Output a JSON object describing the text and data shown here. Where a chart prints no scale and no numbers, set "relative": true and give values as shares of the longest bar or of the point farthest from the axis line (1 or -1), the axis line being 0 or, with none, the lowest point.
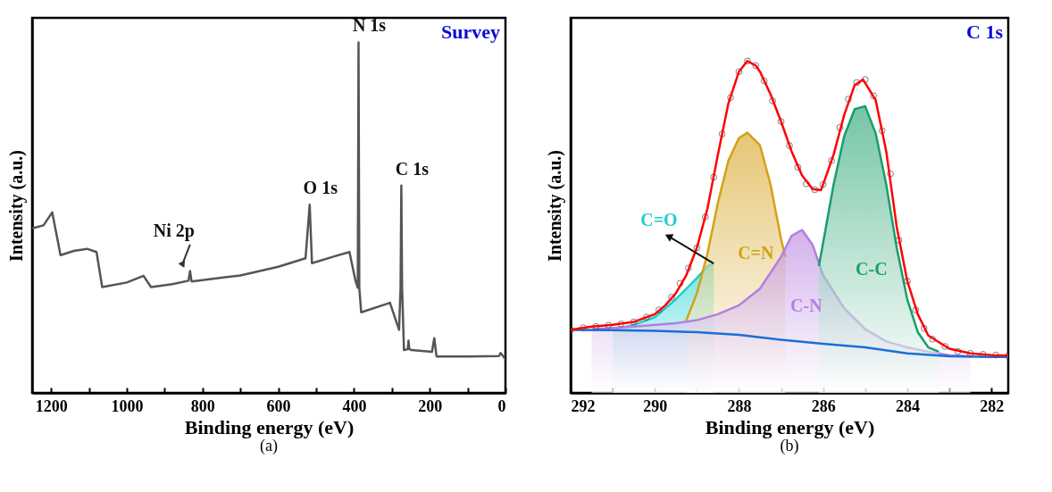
{
  "chart_data": [
    {
      "type": "line",
      "title": "Survey",
      "subtitle": "(a)",
      "xlabel": "Binding energy (eV)",
      "ylabel": "Intensity (a.u.)",
      "relative": true,
      "xlim": [
        1250,
        0
      ],
      "xticks": [
        1200,
        {
          "value": 1100,
          "label": null
        },
        1000,
        {
          "value": 900,
          "label": null
        },
        800,
        {
          "value": 700,
          "label": null
        },
        600,
        {
          "value": 500,
          "label": null
        },
        400,
        {
          "value": 300,
          "label": null
        },
        200,
        {
          "value": 100,
          "label": null
        },
        0
      ],
      "x": [
        1248,
        1220,
        1197,
        1175,
        1140,
        1105,
        1080,
        1065,
        1000,
        956,
        936,
        880,
        837,
        833,
        829,
        700,
        600,
        528,
        517,
        511,
        450,
        412,
        396,
        390,
        388,
        386,
        381,
        305,
        281,
        277,
        275,
        273,
        268,
        258,
        256,
        254,
        248,
        194,
        188,
        182,
        100,
        17,
        13,
        0
      ],
      "series": [
        {
          "color": "#555555",
          "values": [
            0.47,
            0.478,
            0.515,
            0.393,
            0.405,
            0.411,
            0.402,
            0.302,
            0.315,
            0.334,
            0.302,
            0.31,
            0.32,
            0.348,
            0.318,
            0.335,
            0.36,
            0.384,
            0.537,
            0.37,
            0.39,
            0.402,
            0.32,
            0.3,
            1.0,
            0.3,
            0.23,
            0.257,
            0.18,
            0.3,
            0.592,
            0.3,
            0.122,
            0.125,
            0.149,
            0.125,
            0.122,
            0.117,
            0.156,
            0.104,
            0.104,
            0.105,
            0.114,
            0.096
          ]
        }
      ],
      "annotations": [
        {
          "text": "N 1s",
          "x": 388,
          "y": 1.0
        },
        {
          "text": "O 1s",
          "x": 517,
          "y": 0.537
        },
        {
          "text": "C 1s",
          "x": 275,
          "y": 0.592
        },
        {
          "text": "Ni 2p",
          "x": 833,
          "y": 0.348
        }
      ]
    },
    {
      "type": "area",
      "title": "C 1s",
      "subtitle": "(b)",
      "xlabel": "Binding energy (eV)",
      "ylabel": "Intensity (a.u.)",
      "relative": true,
      "xlim": [
        292,
        281.6
      ],
      "xticks": [
        292,
        {
          "value": 291,
          "label": null
        },
        290,
        {
          "value": 289,
          "label": null
        },
        288,
        {
          "value": 287,
          "label": null
        },
        286,
        {
          "value": 285,
          "label": null
        },
        284,
        {
          "value": 283,
          "label": null
        },
        282
      ],
      "series": [
        {
          "name": "C=O",
          "color": "#1ecfcf",
          "x": [
            291,
            290.5,
            290,
            289.5,
            289,
            288.75,
            288.6
          ],
          "values": [
            0.19,
            0.205,
            0.228,
            0.282,
            0.346,
            0.382,
            0.39
          ]
        },
        {
          "name": "C=N",
          "color": "#d4a017",
          "x": [
            289.25,
            289,
            288.75,
            288.5,
            288.25,
            288,
            287.8,
            287.5,
            287.25,
            287,
            286.9
          ],
          "values": [
            0.219,
            0.3,
            0.419,
            0.573,
            0.7,
            0.768,
            0.784,
            0.746,
            0.628,
            0.464,
            0.41
          ]
        },
        {
          "name": "C-N",
          "color": "#b57ee0",
          "x": [
            291.5,
            290.5,
            289.5,
            289,
            288.5,
            288,
            287.5,
            287,
            286.75,
            286.5,
            286.25,
            286,
            285.5,
            285,
            284.5,
            284,
            283.5,
            283,
            282.5
          ],
          "values": [
            0.192,
            0.2,
            0.21,
            0.219,
            0.237,
            0.264,
            0.314,
            0.41,
            0.473,
            0.491,
            0.446,
            0.355,
            0.255,
            0.192,
            0.155,
            0.137,
            0.124,
            0.114,
            0.11
          ]
        },
        {
          "name": "C-C",
          "color": "#1a9e6a",
          "x": [
            286.1,
            285.75,
            285.5,
            285.25,
            285,
            284.75,
            284.5,
            284.25,
            284,
            283.75,
            283.5,
            283.25
          ],
          "values": [
            0.382,
            0.628,
            0.773,
            0.855,
            0.864,
            0.782,
            0.628,
            0.437,
            0.282,
            0.183,
            0.137,
            0.124
          ]
        },
        {
          "type": "line",
          "color": "#1a6fd6",
          "x": [
            292,
            291,
            290,
            289,
            288,
            287,
            286,
            285,
            284,
            283,
            282,
            281.6
          ],
          "values": [
            0.19,
            0.189,
            0.187,
            0.183,
            0.175,
            0.16,
            0.148,
            0.137,
            0.119,
            0.11,
            0.108,
            0.108
          ]
        },
        {
          "type": "scatter",
          "color": "#444444",
          "x": [
            292,
            291.7,
            291.4,
            291.1,
            290.8,
            290.5,
            290.2,
            289.9,
            289.6,
            289.4,
            289.2,
            289,
            288.8,
            288.6,
            288.4,
            288.2,
            288,
            287.8,
            287.6,
            287.4,
            287.2,
            287,
            286.8,
            286.6,
            286.4,
            286.2,
            286,
            285.8,
            285.6,
            285.4,
            285.2,
            285,
            284.8,
            284.6,
            284.4,
            284.2,
            284,
            283.8,
            283.6,
            283.4,
            283.1,
            282.8,
            282.5,
            282.2,
            281.9,
            281.6
          ],
          "values": [
            0.19,
            0.196,
            0.2,
            0.204,
            0.208,
            0.214,
            0.228,
            0.25,
            0.288,
            0.33,
            0.376,
            0.437,
            0.53,
            0.65,
            0.78,
            0.89,
            0.968,
            1.0,
            0.986,
            0.94,
            0.88,
            0.818,
            0.745,
            0.68,
            0.63,
            0.612,
            0.628,
            0.7,
            0.8,
            0.885,
            0.935,
            0.944,
            0.895,
            0.79,
            0.66,
            0.46,
            0.337,
            0.25,
            0.195,
            0.162,
            0.14,
            0.125,
            0.119,
            0.116,
            0.114,
            0.112
          ]
        },
        {
          "type": "line",
          "color": "#ff0000",
          "x": [
            292,
            291.5,
            291,
            290.5,
            290,
            289.75,
            289.5,
            289.25,
            289,
            288.75,
            288.5,
            288.25,
            288,
            287.8,
            287.6,
            287.5,
            287.25,
            287,
            286.75,
            286.5,
            286.25,
            286.05,
            286,
            285.75,
            285.5,
            285.25,
            285.05,
            284.75,
            284.5,
            284.25,
            284,
            283.75,
            283.5,
            283,
            282.5,
            282,
            281.6
          ],
          "values": [
            0.19,
            0.2,
            0.205,
            0.214,
            0.237,
            0.264,
            0.3,
            0.355,
            0.437,
            0.555,
            0.718,
            0.873,
            0.968,
            1.0,
            0.986,
            0.968,
            0.9,
            0.818,
            0.728,
            0.655,
            0.614,
            0.611,
            0.628,
            0.718,
            0.837,
            0.927,
            0.944,
            0.882,
            0.728,
            0.5,
            0.337,
            0.237,
            0.173,
            0.133,
            0.119,
            0.114,
            0.112
          ]
        }
      ]
    }
  ]
}
